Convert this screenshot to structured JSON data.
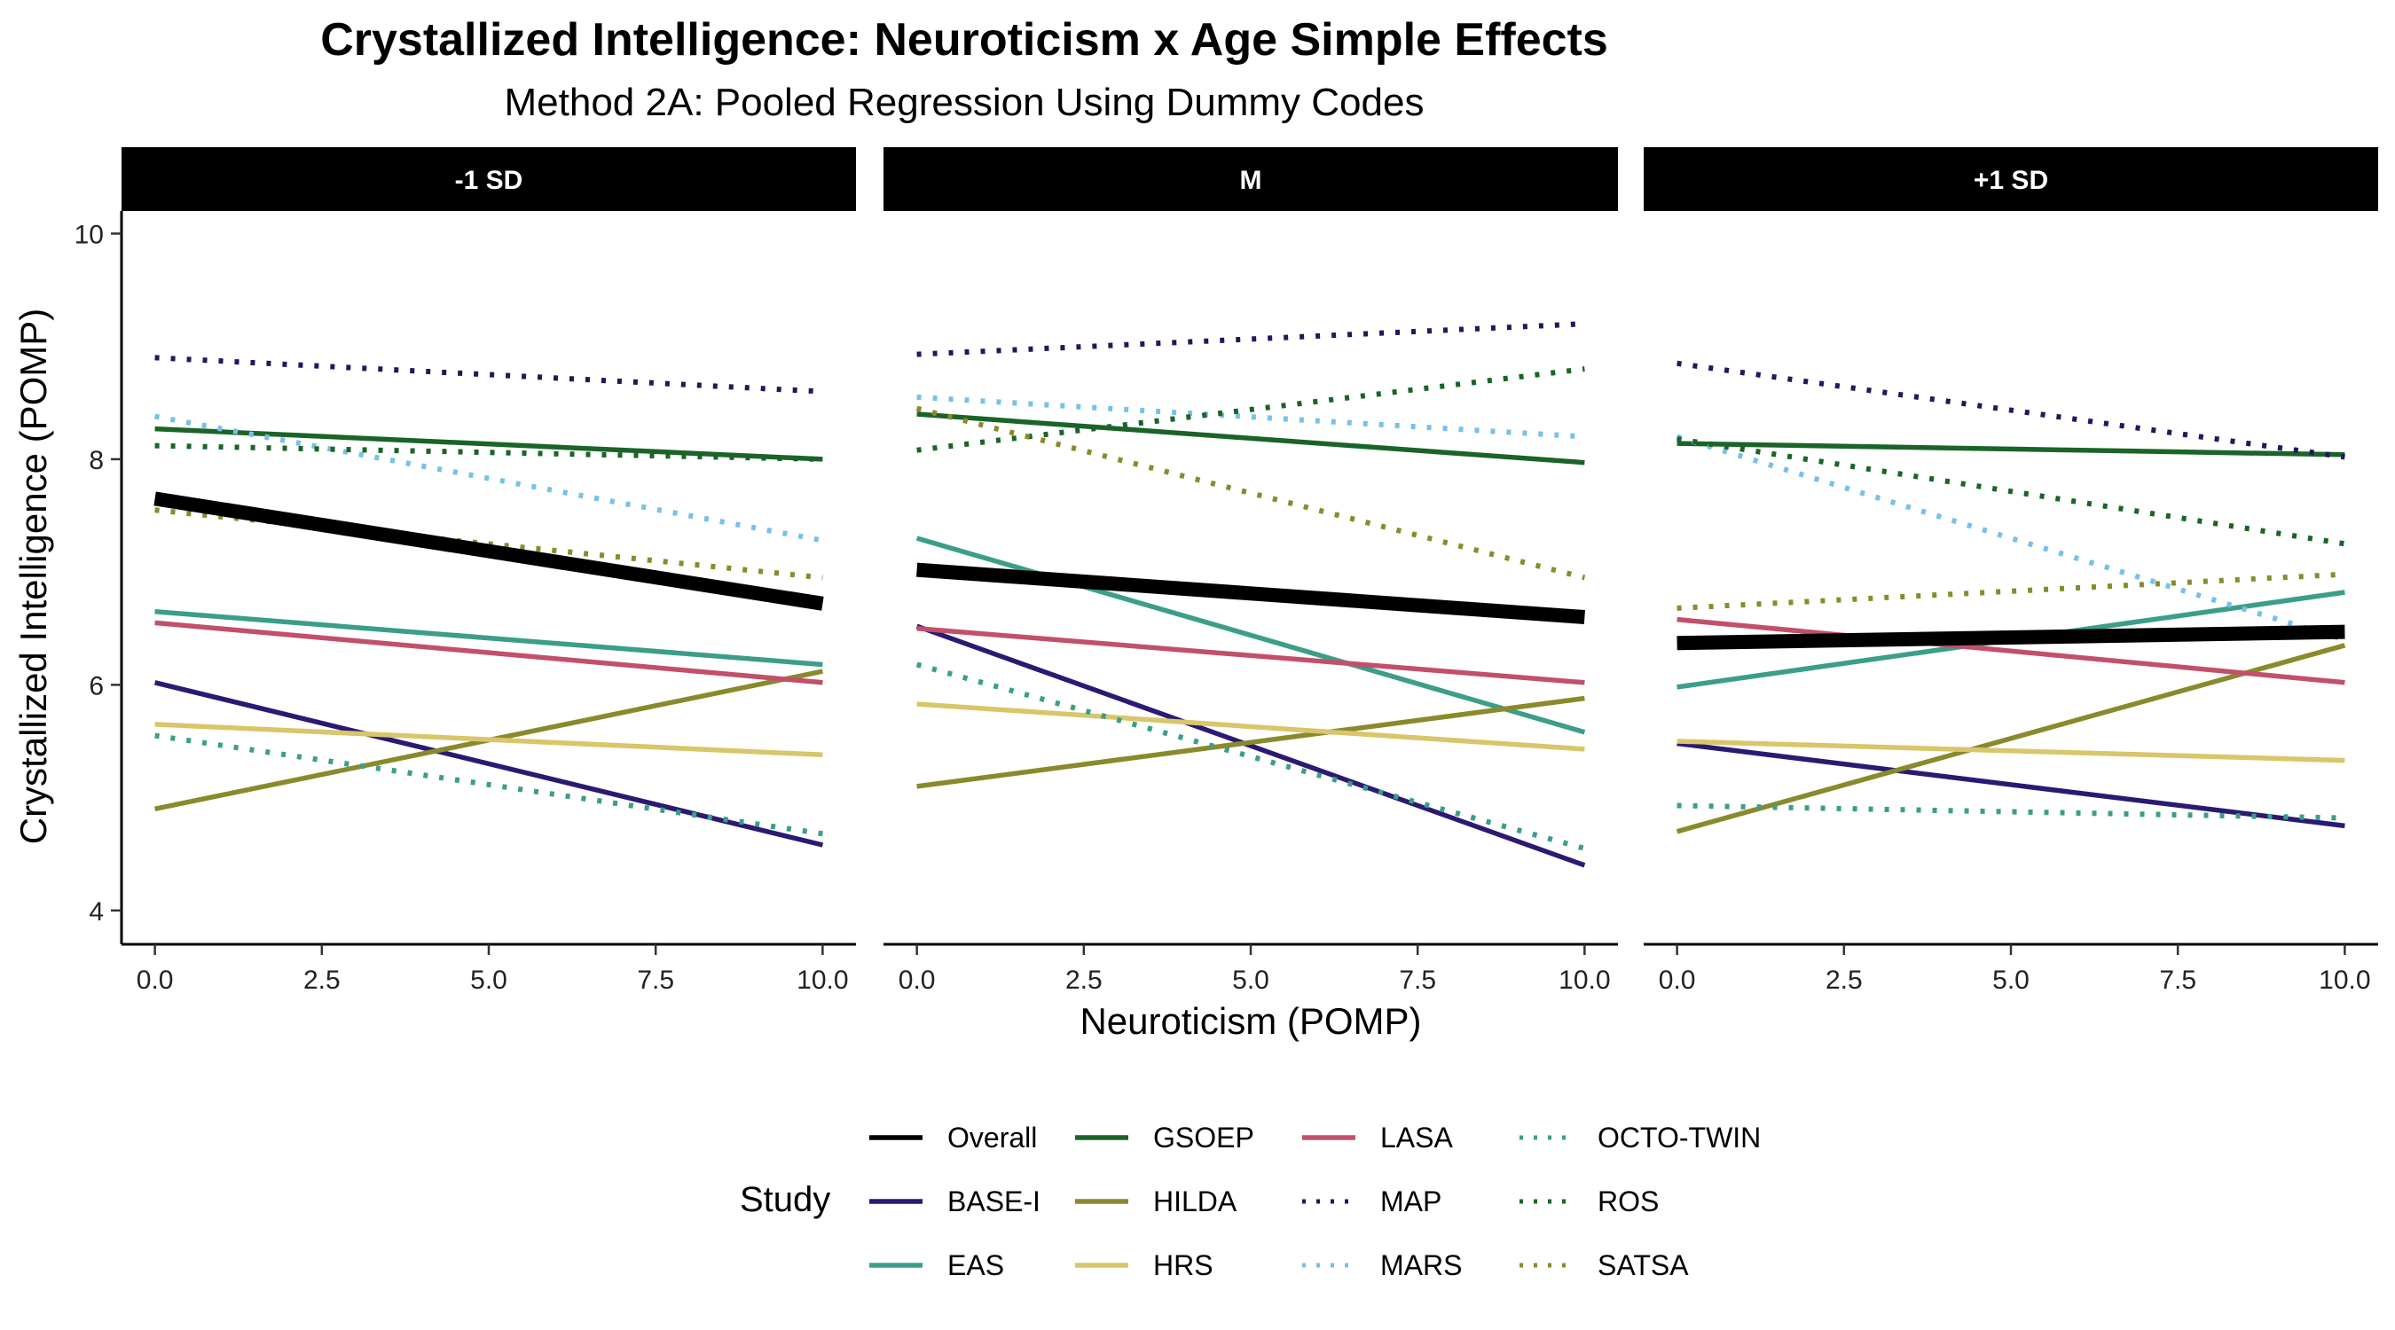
{
  "chart_data": {
    "type": "line",
    "title": "Crystallized Intelligence: Neuroticism x Age Simple Effects",
    "subtitle": "Method 2A: Pooled Regression Using Dummy Codes",
    "xlabel": "Neuroticism (POMP)",
    "ylabel": "Crystallized Intelligence (POMP)",
    "xlim": [
      -0.5,
      10.5
    ],
    "ylim": [
      3.7,
      10.2
    ],
    "x_ticks": [
      0,
      2.5,
      5,
      7.5,
      10
    ],
    "x_tick_labels": [
      "0.0",
      "2.5",
      "5.0",
      "7.5",
      "10.0"
    ],
    "y_ticks": [
      4,
      6,
      8,
      10
    ],
    "y_tick_labels": [
      "4",
      "6",
      "8",
      "10"
    ],
    "grid": false,
    "legend_title": "Study",
    "legend_position": "bottom",
    "facets": [
      "-1 SD",
      "M",
      "+1 SD"
    ],
    "studies": [
      {
        "name": "Overall",
        "color": "#000000",
        "dash": "solid",
        "emphasis": true
      },
      {
        "name": "BASE-I",
        "color": "#2b1a73",
        "dash": "solid"
      },
      {
        "name": "EAS",
        "color": "#3b9e89",
        "dash": "solid"
      },
      {
        "name": "GSOEP",
        "color": "#1a6428",
        "dash": "solid"
      },
      {
        "name": "HILDA",
        "color": "#8a8a2c",
        "dash": "solid"
      },
      {
        "name": "HRS",
        "color": "#d9c56a",
        "dash": "solid"
      },
      {
        "name": "LASA",
        "color": "#c2506a",
        "dash": "solid"
      },
      {
        "name": "MAP",
        "color": "#1e1a5c",
        "dash": "dotted"
      },
      {
        "name": "MARS",
        "color": "#79c0e8",
        "dash": "dotted"
      },
      {
        "name": "OCTO-TWIN",
        "color": "#3b9e89",
        "dash": "dotted"
      },
      {
        "name": "ROS",
        "color": "#1a6428",
        "dash": "dotted"
      },
      {
        "name": "SATSA",
        "color": "#8a8a2c",
        "dash": "dotted"
      }
    ],
    "panels": [
      {
        "label": "-1 SD",
        "series": [
          {
            "name": "Overall",
            "x": [
              0,
              10
            ],
            "y": [
              7.65,
              6.72
            ]
          },
          {
            "name": "BASE-I",
            "x": [
              0,
              10
            ],
            "y": [
              6.02,
              4.58
            ]
          },
          {
            "name": "EAS",
            "x": [
              0,
              10
            ],
            "y": [
              6.65,
              6.18
            ]
          },
          {
            "name": "GSOEP",
            "x": [
              0,
              10
            ],
            "y": [
              8.27,
              8.0
            ]
          },
          {
            "name": "HILDA",
            "x": [
              0,
              10
            ],
            "y": [
              4.9,
              6.12
            ]
          },
          {
            "name": "HRS",
            "x": [
              0,
              10
            ],
            "y": [
              5.65,
              5.38
            ]
          },
          {
            "name": "LASA",
            "x": [
              0,
              10
            ],
            "y": [
              6.55,
              6.02
            ]
          },
          {
            "name": "MAP",
            "x": [
              0,
              10
            ],
            "y": [
              8.9,
              8.6
            ]
          },
          {
            "name": "MARS",
            "x": [
              0,
              10
            ],
            "y": [
              8.38,
              7.28
            ]
          },
          {
            "name": "OCTO-TWIN",
            "x": [
              0,
              10
            ],
            "y": [
              5.55,
              4.68
            ]
          },
          {
            "name": "ROS",
            "x": [
              0,
              10
            ],
            "y": [
              8.12,
              8.0
            ]
          },
          {
            "name": "SATSA",
            "x": [
              0,
              10
            ],
            "y": [
              7.55,
              6.95
            ]
          }
        ]
      },
      {
        "label": "M",
        "series": [
          {
            "name": "Overall",
            "x": [
              0,
              10
            ],
            "y": [
              7.02,
              6.6
            ]
          },
          {
            "name": "BASE-I",
            "x": [
              0,
              10
            ],
            "y": [
              6.52,
              4.4
            ]
          },
          {
            "name": "EAS",
            "x": [
              0,
              10
            ],
            "y": [
              7.3,
              5.58
            ]
          },
          {
            "name": "GSOEP",
            "x": [
              0,
              10
            ],
            "y": [
              8.4,
              7.97
            ]
          },
          {
            "name": "HILDA",
            "x": [
              0,
              10
            ],
            "y": [
              5.1,
              5.88
            ]
          },
          {
            "name": "HRS",
            "x": [
              0,
              10
            ],
            "y": [
              5.83,
              5.43
            ]
          },
          {
            "name": "LASA",
            "x": [
              0,
              10
            ],
            "y": [
              6.5,
              6.02
            ]
          },
          {
            "name": "MAP",
            "x": [
              0,
              10
            ],
            "y": [
              8.93,
              9.2
            ]
          },
          {
            "name": "MARS",
            "x": [
              0,
              10
            ],
            "y": [
              8.55,
              8.2
            ]
          },
          {
            "name": "OCTO-TWIN",
            "x": [
              0,
              10
            ],
            "y": [
              6.18,
              4.55
            ]
          },
          {
            "name": "ROS",
            "x": [
              0,
              10
            ],
            "y": [
              8.08,
              8.8
            ]
          },
          {
            "name": "SATSA",
            "x": [
              0,
              10
            ],
            "y": [
              8.45,
              6.95
            ]
          }
        ]
      },
      {
        "label": "+1 SD",
        "series": [
          {
            "name": "Overall",
            "x": [
              0,
              10
            ],
            "y": [
              6.37,
              6.47
            ]
          },
          {
            "name": "BASE-I",
            "x": [
              0,
              10
            ],
            "y": [
              5.48,
              4.75
            ]
          },
          {
            "name": "EAS",
            "x": [
              0,
              10
            ],
            "y": [
              5.98,
              6.82
            ]
          },
          {
            "name": "GSOEP",
            "x": [
              0,
              10
            ],
            "y": [
              8.14,
              8.04
            ]
          },
          {
            "name": "HILDA",
            "x": [
              0,
              10
            ],
            "y": [
              4.7,
              6.35
            ]
          },
          {
            "name": "HRS",
            "x": [
              0,
              10
            ],
            "y": [
              5.5,
              5.33
            ]
          },
          {
            "name": "LASA",
            "x": [
              0,
              10
            ],
            "y": [
              6.58,
              6.02
            ]
          },
          {
            "name": "MAP",
            "x": [
              0,
              10
            ],
            "y": [
              8.85,
              8.02
            ]
          },
          {
            "name": "MARS",
            "x": [
              0,
              10
            ],
            "y": [
              8.2,
              6.4
            ]
          },
          {
            "name": "OCTO-TWIN",
            "x": [
              0,
              10
            ],
            "y": [
              4.93,
              4.82
            ]
          },
          {
            "name": "ROS",
            "x": [
              0,
              10
            ],
            "y": [
              8.18,
              7.25
            ]
          },
          {
            "name": "SATSA",
            "x": [
              0,
              10
            ],
            "y": [
              6.68,
              6.98
            ]
          }
        ]
      }
    ]
  }
}
